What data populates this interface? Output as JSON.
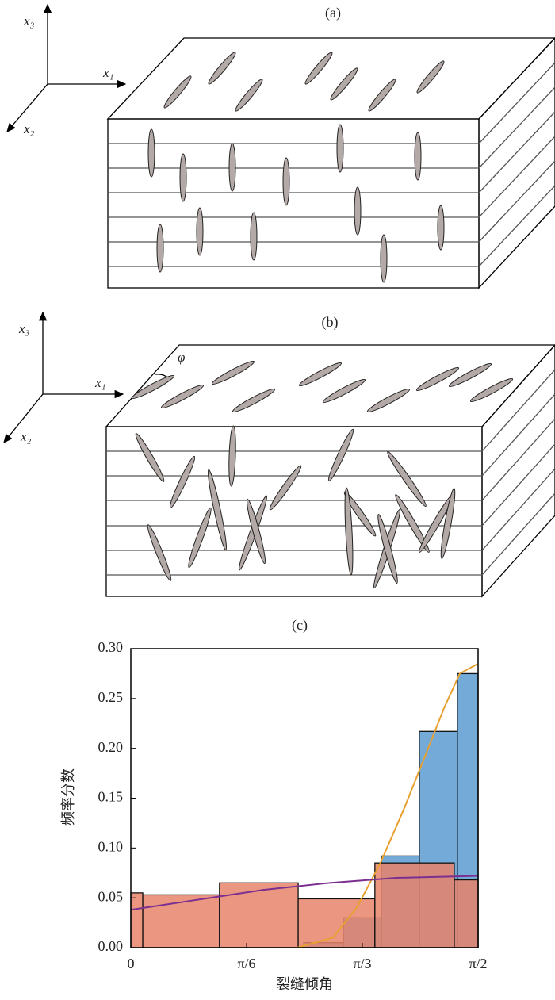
{
  "diagram": {
    "panel_a": {
      "label": "(a)",
      "axes": [
        "x₁",
        "x₂",
        "x₃"
      ]
    },
    "panel_b": {
      "label": "(b)",
      "axes": [
        "x₁",
        "x₂",
        "x₃"
      ],
      "angle": "φ"
    }
  },
  "chart_data": {
    "type": "histogram",
    "title": "(c)",
    "x_label": "裂缝倾角",
    "y_label": "频率分数",
    "xlim": [
      0,
      1.5708
    ],
    "ylim": [
      0,
      0.3
    ],
    "xticks": [
      0,
      {
        "value": 0.5236,
        "label": "π/6"
      },
      {
        "value": 1.0472,
        "label": "π/3"
      },
      {
        "value": 1.5708,
        "label": "π/2"
      }
    ],
    "yticks": [
      {
        "value": 0,
        "label": "0.00"
      },
      {
        "value": 0.05,
        "label": "0.05"
      },
      {
        "value": 0.1,
        "label": "0.10"
      },
      {
        "value": 0.15,
        "label": "0.15"
      },
      {
        "value": 0.2,
        "label": "0.20"
      },
      {
        "value": 0.25,
        "label": "0.25"
      },
      {
        "value": 0.3,
        "label": "0.30"
      }
    ],
    "alpha": 0.85,
    "series": [
      {
        "type": "histogram",
        "color": "#5b9bd0",
        "bins": [
          0.782,
          0.961,
          1.133,
          1.305,
          1.477,
          1.5708
        ],
        "values": [
          0.005,
          0.03,
          0.092,
          0.217,
          0.275
        ]
      },
      {
        "type": "histogram",
        "color": "#e8846a",
        "bins": [
          0,
          0.054,
          0.401,
          0.757,
          1.104,
          1.463,
          1.5708
        ],
        "values": [
          0.055,
          0.053,
          0.065,
          0.049,
          0.085,
          0.068
        ]
      },
      {
        "type": "line",
        "color": "#e8a030",
        "x": [
          0.753,
          0.914,
          1.022,
          1.129,
          1.237,
          1.345,
          1.416,
          1.488,
          1.5708
        ],
        "values": [
          0,
          0.01,
          0.04,
          0.085,
          0.14,
          0.2,
          0.24,
          0.275,
          0.285
        ]
      },
      {
        "type": "line",
        "color": "#7b2f90",
        "x": [
          0,
          0.3,
          0.6,
          0.9,
          1.2,
          1.5708
        ],
        "values": [
          0.038,
          0.048,
          0.058,
          0.065,
          0.07,
          0.072
        ]
      }
    ]
  }
}
